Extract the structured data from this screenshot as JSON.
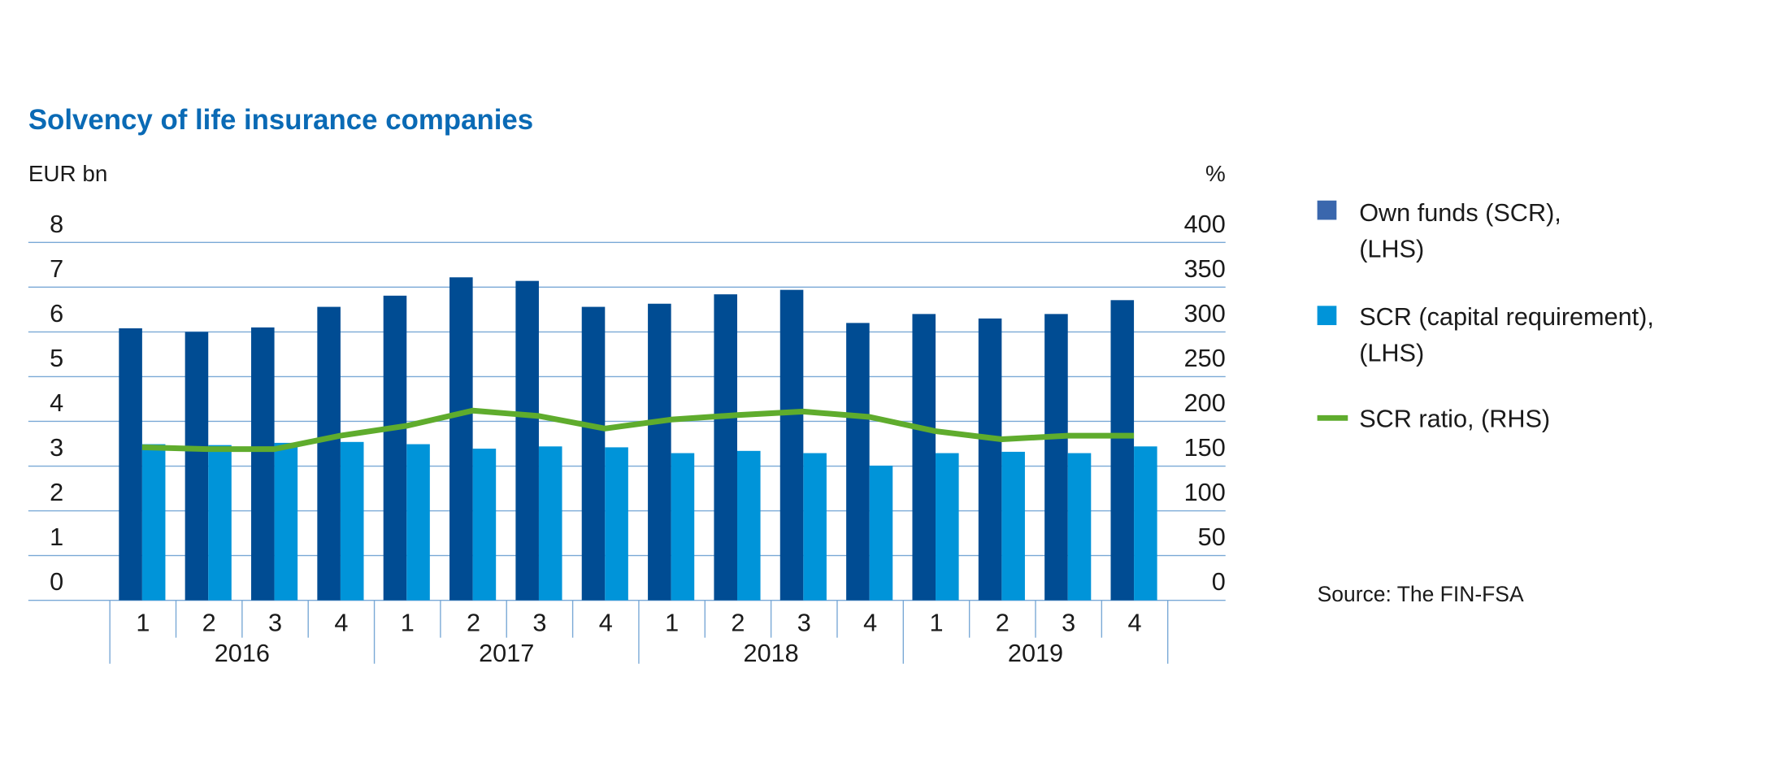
{
  "chart_data": {
    "type": "bar",
    "title": "Solvency of life insurance companies",
    "ylabel_left": "EUR bn",
    "ylabel_right": "%",
    "ylim_left": [
      0,
      8
    ],
    "ylim_right": [
      0,
      400
    ],
    "yticks_left": [
      "0",
      "1",
      "2",
      "3",
      "4",
      "5",
      "6",
      "7",
      "8"
    ],
    "yticks_right": [
      "0",
      "50",
      "100",
      "150",
      "200",
      "250",
      "300",
      "350",
      "400"
    ],
    "quarters": [
      "1",
      "2",
      "3",
      "4",
      "1",
      "2",
      "3",
      "4",
      "1",
      "2",
      "3",
      "4",
      "1",
      "2",
      "3",
      "4"
    ],
    "years": [
      "2016",
      "2017",
      "2018",
      "2019"
    ],
    "grid": true,
    "legend_placement": "right",
    "series": [
      {
        "name": "Own funds (SCR),",
        "name_line2": "(LHS)",
        "type": "bar",
        "axis": "left",
        "color": "#004c93",
        "values": [
          6.08,
          6.0,
          6.1,
          6.56,
          6.81,
          7.22,
          7.14,
          6.56,
          6.63,
          6.84,
          6.94,
          6.2,
          6.4,
          6.3,
          6.4,
          6.71
        ]
      },
      {
        "name": "SCR (capital requirement),",
        "name_line2": "(LHS)",
        "type": "bar",
        "axis": "left",
        "color": "#0094d9",
        "values": [
          3.49,
          3.47,
          3.52,
          3.54,
          3.49,
          3.39,
          3.44,
          3.42,
          3.29,
          3.34,
          3.29,
          3.01,
          3.29,
          3.32,
          3.29,
          3.44
        ]
      },
      {
        "name": "SCR ratio, (RHS)",
        "type": "line",
        "axis": "right",
        "color": "#5fac2d",
        "values": [
          171,
          169,
          169,
          184,
          195,
          212,
          206,
          192,
          202,
          207,
          211,
          205,
          189,
          180,
          184,
          184
        ]
      }
    ],
    "source": "Source: The FIN-FSA"
  },
  "colors": {
    "title": "#0a6ab5",
    "grid": "#7aa9d6"
  }
}
